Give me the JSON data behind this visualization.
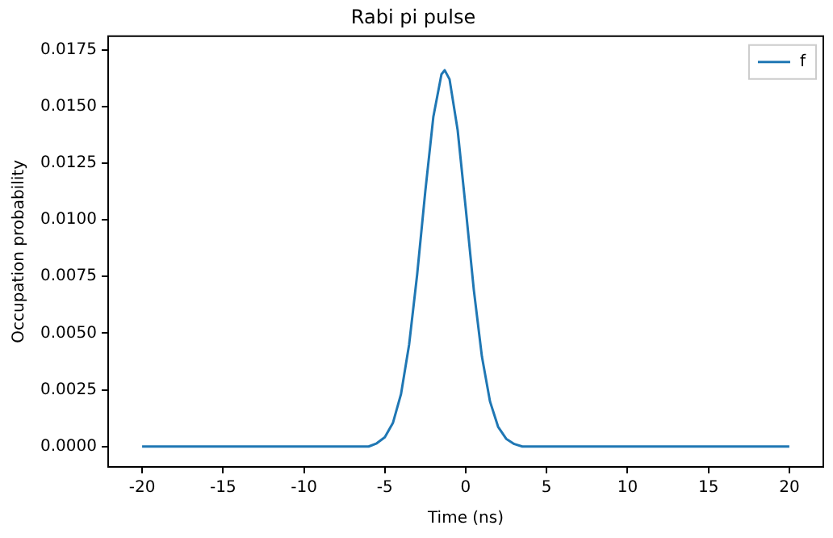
{
  "chart_data": {
    "type": "line",
    "title": "Rabi pi pulse",
    "xlabel": "Time (ns)",
    "ylabel": "Occupation probability",
    "series": [
      {
        "name": "f",
        "color": "#1f77b4",
        "x": [
          -20,
          -15,
          -10,
          -7,
          -6,
          -5.5,
          -5,
          -4.5,
          -4,
          -3.5,
          -3,
          -2.5,
          -2,
          -1.5,
          -1.3,
          -1,
          -0.5,
          0,
          0.5,
          1,
          1.5,
          2,
          2.5,
          3,
          3.5,
          4,
          5,
          10,
          15,
          20
        ],
        "values": [
          0,
          0,
          0,
          0,
          0,
          0.00014,
          0.00041,
          0.00104,
          0.00231,
          0.00449,
          0.0076,
          0.01125,
          0.01455,
          0.01642,
          0.0166,
          0.0162,
          0.01396,
          0.01051,
          0.00691,
          0.00397,
          0.00199,
          0.00087,
          0.00034,
          0.00011,
          0,
          0,
          0,
          0,
          0,
          0
        ]
      }
    ],
    "xlim": [
      -22.1,
      22.1
    ],
    "xticks": [
      -20,
      -15,
      -10,
      -5,
      0,
      5,
      10,
      15,
      20
    ],
    "ylim": [
      -0.0009,
      0.0181
    ],
    "yticks": [
      {
        "value": 0,
        "label": "0.0000"
      },
      {
        "value": 0.0025,
        "label": "0.0025"
      },
      {
        "value": 0.005,
        "label": "0.0050"
      },
      {
        "value": 0.0075,
        "label": "0.0075"
      },
      {
        "value": 0.01,
        "label": "0.0100"
      },
      {
        "value": 0.0125,
        "label": "0.0125"
      },
      {
        "value": 0.015,
        "label": "0.0150"
      },
      {
        "value": 0.0175,
        "label": "0.0175"
      }
    ],
    "grid": false,
    "legend": "top right",
    "marker": "none",
    "line_style": "solid"
  }
}
